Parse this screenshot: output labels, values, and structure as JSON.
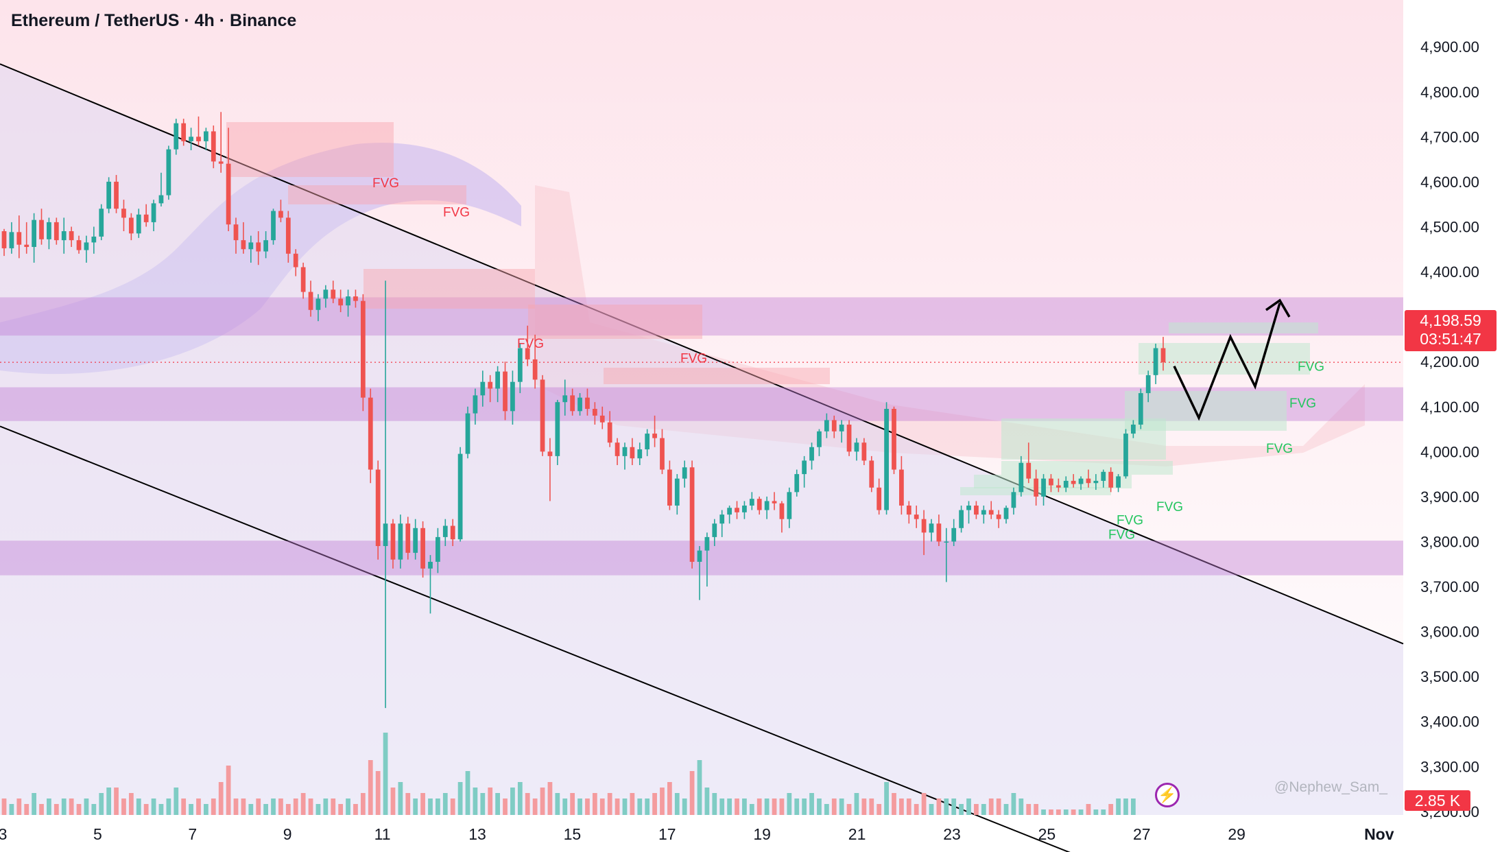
{
  "header": {
    "title": "Ethereum / TetherUS · 4h · Binance"
  },
  "current_price": {
    "price": "4,198.59",
    "countdown": "03:51:47",
    "color": "#f23645"
  },
  "volume_tag": "2.85 K",
  "watermark": "@Nephew_Sam_",
  "icons": {
    "alert": "lightning-icon"
  },
  "colors": {
    "up": "#26a69a",
    "down": "#ef5350",
    "up_volume": "#7fccc4",
    "down_volume": "#f49b9e",
    "zone": "#c27bd4",
    "fvg_bear": "#f8a5ae",
    "fvg_bull": "#bfe8cf",
    "channel": "#d9d5f2",
    "background_top": "#fde4eb",
    "axis_text": "#131722"
  },
  "chart_data": {
    "type": "candlestick",
    "pair": "ETH/USDT",
    "timeframe": "4h",
    "exchange": "Binance",
    "ylim": [
      3100,
      4950
    ],
    "y_ticks": [
      "4,900.00",
      "4,800.00",
      "4,700.00",
      "4,600.00",
      "4,500.00",
      "4,400.00",
      "4,300.00",
      "4,200.00",
      "4,100.00",
      "4,000.00",
      "3,900.00",
      "3,800.00",
      "3,700.00",
      "3,600.00",
      "3,500.00",
      "3,400.00",
      "3,300.00",
      "3,200.00"
    ],
    "x_ticks": [
      "3",
      "5",
      "7",
      "9",
      "11",
      "13",
      "15",
      "17",
      "19",
      "21",
      "23",
      "25",
      "27",
      "29",
      "Nov"
    ],
    "zones": [
      {
        "from": 4258,
        "to": 4343
      },
      {
        "from": 4068,
        "to": 4143
      },
      {
        "from": 3725,
        "to": 3802
      }
    ],
    "fvg_labels": [
      {
        "label": "FVG",
        "kind": "bear",
        "price": 4600
      },
      {
        "label": "FVG",
        "kind": "bear",
        "price": 4535
      },
      {
        "label": "FVG",
        "kind": "bear",
        "price": 4243
      },
      {
        "label": "FVG",
        "kind": "bear",
        "price": 4210
      },
      {
        "label": "FVG",
        "kind": "bull",
        "price": 4192
      },
      {
        "label": "FVG",
        "kind": "bull",
        "price": 4110
      },
      {
        "label": "FVG",
        "kind": "bull",
        "price": 4010
      },
      {
        "label": "FVG",
        "kind": "bull",
        "price": 3880
      },
      {
        "label": "FVG",
        "kind": "bull",
        "price": 3850
      },
      {
        "label": "FVG",
        "kind": "bull",
        "price": 3818
      }
    ],
    "channel_upper": [
      {
        "x": "Sep 30",
        "y": 4990
      },
      {
        "x": "Nov 1",
        "y": 3595
      }
    ],
    "channel_lower": [
      {
        "x": "Sep 30",
        "y": 4180
      },
      {
        "x": "Oct 27",
        "y": 3045
      }
    ],
    "projection": [
      4190,
      4075,
      4255,
      4145,
      4330
    ],
    "last_close": 4198.59,
    "last_volume": "2.85 K",
    "candles": [
      [
        4490,
        4495,
        4435,
        4452
      ],
      [
        4452,
        4510,
        4440,
        4488
      ],
      [
        4488,
        4525,
        4430,
        4460
      ],
      [
        4460,
        4510,
        4440,
        4455
      ],
      [
        4455,
        4530,
        4420,
        4515
      ],
      [
        4515,
        4540,
        4460,
        4472
      ],
      [
        4472,
        4520,
        4450,
        4510
      ],
      [
        4510,
        4520,
        4460,
        4470
      ],
      [
        4470,
        4520,
        4440,
        4490
      ],
      [
        4490,
        4500,
        4455,
        4470
      ],
      [
        4470,
        4480,
        4440,
        4448
      ],
      [
        4448,
        4480,
        4420,
        4465
      ],
      [
        4465,
        4500,
        4440,
        4478
      ],
      [
        4478,
        4550,
        4470,
        4540
      ],
      [
        4540,
        4610,
        4530,
        4600
      ],
      [
        4600,
        4615,
        4530,
        4540
      ],
      [
        4540,
        4560,
        4490,
        4520
      ],
      [
        4520,
        4530,
        4470,
        4485
      ],
      [
        4485,
        4540,
        4475,
        4527
      ],
      [
        4527,
        4550,
        4500,
        4510
      ],
      [
        4510,
        4560,
        4490,
        4552
      ],
      [
        4552,
        4620,
        4545,
        4570
      ],
      [
        4570,
        4680,
        4560,
        4672
      ],
      [
        4672,
        4740,
        4660,
        4730
      ],
      [
        4730,
        4740,
        4680,
        4690
      ],
      [
        4690,
        4720,
        4670,
        4700
      ],
      [
        4700,
        4745,
        4680,
        4690
      ],
      [
        4690,
        4720,
        4670,
        4712
      ],
      [
        4712,
        4725,
        4630,
        4645
      ],
      [
        4645,
        4755,
        4620,
        4640
      ],
      [
        4640,
        4720,
        4490,
        4505
      ],
      [
        4505,
        4520,
        4440,
        4470
      ],
      [
        4470,
        4510,
        4440,
        4450
      ],
      [
        4450,
        4480,
        4420,
        4465
      ],
      [
        4465,
        4490,
        4415,
        4445
      ],
      [
        4445,
        4490,
        4430,
        4470
      ],
      [
        4470,
        4540,
        4460,
        4535
      ],
      [
        4535,
        4560,
        4510,
        4520
      ],
      [
        4520,
        4535,
        4420,
        4440
      ],
      [
        4440,
        4450,
        4390,
        4410
      ],
      [
        4410,
        4420,
        4340,
        4355
      ],
      [
        4355,
        4380,
        4300,
        4315
      ],
      [
        4315,
        4350,
        4290,
        4340
      ],
      [
        4340,
        4370,
        4320,
        4360
      ],
      [
        4360,
        4380,
        4330,
        4340
      ],
      [
        4340,
        4360,
        4310,
        4325
      ],
      [
        4325,
        4360,
        4300,
        4345
      ],
      [
        4345,
        4360,
        4320,
        4335
      ],
      [
        4335,
        4350,
        4090,
        4120
      ],
      [
        4120,
        4140,
        3930,
        3960
      ],
      [
        3960,
        3980,
        3760,
        3790
      ],
      [
        3790,
        4380,
        3430,
        3840
      ],
      [
        3840,
        3850,
        3740,
        3760
      ],
      [
        3760,
        3860,
        3740,
        3840
      ],
      [
        3840,
        3855,
        3760,
        3775
      ],
      [
        3775,
        3850,
        3760,
        3830
      ],
      [
        3830,
        3845,
        3720,
        3740
      ],
      [
        3740,
        3770,
        3640,
        3755
      ],
      [
        3755,
        3830,
        3730,
        3810
      ],
      [
        3810,
        3850,
        3790,
        3835
      ],
      [
        3835,
        3850,
        3790,
        3805
      ],
      [
        3805,
        4010,
        3800,
        3995
      ],
      [
        3995,
        4100,
        3985,
        4085
      ],
      [
        4085,
        4140,
        4060,
        4125
      ],
      [
        4125,
        4180,
        4100,
        4155
      ],
      [
        4155,
        4170,
        4110,
        4140
      ],
      [
        4140,
        4190,
        4110,
        4178
      ],
      [
        4178,
        4200,
        4070,
        4090
      ],
      [
        4090,
        4180,
        4060,
        4155
      ],
      [
        4155,
        4240,
        4130,
        4230
      ],
      [
        4230,
        4280,
        4190,
        4205
      ],
      [
        4205,
        4260,
        4140,
        4160
      ],
      [
        4160,
        4170,
        3990,
        4000
      ],
      [
        4000,
        4030,
        3890,
        3990
      ],
      [
        3990,
        4115,
        3970,
        4110
      ],
      [
        4110,
        4160,
        4080,
        4125
      ],
      [
        4125,
        4140,
        4080,
        4090
      ],
      [
        4090,
        4130,
        4080,
        4120
      ],
      [
        4120,
        4140,
        4080,
        4095
      ],
      [
        4095,
        4110,
        4060,
        4080
      ],
      [
        4080,
        4100,
        4050,
        4065
      ],
      [
        4065,
        4090,
        4010,
        4020
      ],
      [
        4020,
        4030,
        3970,
        3990
      ],
      [
        3990,
        4020,
        3960,
        4010
      ],
      [
        4010,
        4030,
        3970,
        3985
      ],
      [
        3985,
        4020,
        3970,
        4005
      ],
      [
        4005,
        4050,
        3990,
        4040
      ],
      [
        4040,
        4080,
        4010,
        4030
      ],
      [
        4030,
        4050,
        3950,
        3960
      ],
      [
        3960,
        3980,
        3870,
        3880
      ],
      [
        3880,
        3950,
        3860,
        3940
      ],
      [
        3940,
        3980,
        3920,
        3965
      ],
      [
        3965,
        3980,
        3740,
        3755
      ],
      [
        3755,
        3790,
        3670,
        3780
      ],
      [
        3780,
        3820,
        3700,
        3810
      ],
      [
        3810,
        3850,
        3790,
        3840
      ],
      [
        3840,
        3870,
        3810,
        3860
      ],
      [
        3860,
        3880,
        3840,
        3875
      ],
      [
        3875,
        3890,
        3850,
        3865
      ],
      [
        3865,
        3890,
        3850,
        3880
      ],
      [
        3880,
        3910,
        3870,
        3895
      ],
      [
        3895,
        3900,
        3860,
        3870
      ],
      [
        3870,
        3900,
        3850,
        3890
      ],
      [
        3890,
        3910,
        3870,
        3885
      ],
      [
        3885,
        3890,
        3820,
        3850
      ],
      [
        3850,
        3920,
        3830,
        3910
      ],
      [
        3910,
        3960,
        3900,
        3950
      ],
      [
        3950,
        3990,
        3920,
        3980
      ],
      [
        3980,
        4020,
        3960,
        4010
      ],
      [
        4010,
        4050,
        3990,
        4045
      ],
      [
        4045,
        4085,
        4030,
        4070
      ],
      [
        4070,
        4080,
        4030,
        4045
      ],
      [
        4045,
        4070,
        4020,
        4060
      ],
      [
        4060,
        4070,
        3990,
        4000
      ],
      [
        4000,
        4030,
        3980,
        4020
      ],
      [
        4020,
        4030,
        3970,
        3980
      ],
      [
        3980,
        3990,
        3910,
        3920
      ],
      [
        3920,
        3940,
        3860,
        3870
      ],
      [
        3870,
        4110,
        3860,
        4095
      ],
      [
        4095,
        4100,
        3950,
        3960
      ],
      [
        3960,
        3990,
        3860,
        3880
      ],
      [
        3880,
        3890,
        3840,
        3860
      ],
      [
        3860,
        3880,
        3830,
        3850
      ],
      [
        3850,
        3870,
        3770,
        3820
      ],
      [
        3820,
        3850,
        3800,
        3840
      ],
      [
        3840,
        3860,
        3790,
        3800
      ],
      [
        3800,
        3830,
        3710,
        3800
      ],
      [
        3800,
        3850,
        3790,
        3830
      ],
      [
        3830,
        3880,
        3820,
        3870
      ],
      [
        3870,
        3890,
        3840,
        3880
      ],
      [
        3880,
        3890,
        3850,
        3860
      ],
      [
        3860,
        3880,
        3840,
        3870
      ],
      [
        3870,
        3890,
        3850,
        3860
      ],
      [
        3860,
        3870,
        3830,
        3850
      ],
      [
        3850,
        3880,
        3840,
        3875
      ],
      [
        3875,
        3920,
        3860,
        3910
      ],
      [
        3910,
        3990,
        3900,
        3975
      ],
      [
        3975,
        4020,
        3930,
        3940
      ],
      [
        3940,
        3960,
        3880,
        3900
      ],
      [
        3900,
        3950,
        3880,
        3940
      ],
      [
        3940,
        3950,
        3910,
        3925
      ],
      [
        3925,
        3940,
        3910,
        3920
      ],
      [
        3920,
        3945,
        3910,
        3935
      ],
      [
        3935,
        3950,
        3920,
        3928
      ],
      [
        3928,
        3945,
        3915,
        3940
      ],
      [
        3940,
        3960,
        3920,
        3930
      ],
      [
        3930,
        3950,
        3915,
        3935
      ],
      [
        3935,
        3960,
        3920,
        3955
      ],
      [
        3955,
        3965,
        3910,
        3920
      ],
      [
        3920,
        3950,
        3910,
        3945
      ],
      [
        3945,
        4050,
        3940,
        4040
      ],
      [
        4040,
        4070,
        4030,
        4060
      ],
      [
        4060,
        4140,
        4050,
        4130
      ],
      [
        4130,
        4180,
        4110,
        4170
      ],
      [
        4170,
        4240,
        4150,
        4230
      ],
      [
        4230,
        4255,
        4180,
        4198.59
      ]
    ],
    "volume": [
      3,
      2,
      3,
      2,
      4,
      2,
      3,
      2,
      3,
      3,
      2,
      3,
      2,
      4,
      5,
      5,
      3,
      4,
      3,
      2,
      3,
      2,
      3,
      5,
      3,
      2,
      3,
      2,
      3,
      6,
      9,
      3,
      3,
      2,
      3,
      2,
      3,
      3,
      2,
      3,
      4,
      3,
      2,
      3,
      3,
      2,
      3,
      2,
      4,
      10,
      8,
      15,
      5,
      6,
      4,
      3,
      4,
      3,
      3,
      4,
      3,
      6,
      8,
      5,
      4,
      5,
      4,
      3,
      5,
      6,
      4,
      3,
      5,
      6,
      4,
      3,
      4,
      3,
      3,
      4,
      3,
      4,
      3,
      3,
      4,
      3,
      3,
      4,
      5,
      6,
      4,
      3,
      8,
      10,
      5,
      4,
      3,
      3,
      3,
      3,
      2,
      3,
      3,
      3,
      3,
      4,
      3,
      3,
      4,
      3,
      2,
      3,
      3,
      2,
      4,
      3,
      3,
      2,
      6,
      4,
      3,
      3,
      2,
      4,
      2,
      3,
      3,
      3,
      2,
      3,
      2,
      2,
      3,
      3,
      2,
      4,
      3,
      2,
      2,
      1,
      1,
      1,
      1,
      1,
      1,
      2,
      1,
      1,
      2,
      3,
      3,
      3
    ]
  }
}
